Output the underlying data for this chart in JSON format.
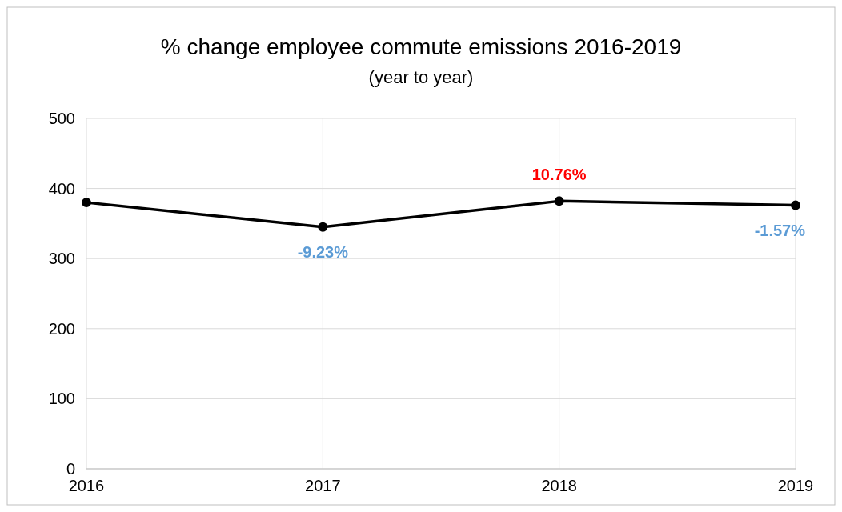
{
  "chart_data": {
    "type": "line",
    "title": "% change employee commute emissions 2016-2019",
    "subtitle": "(year to year)",
    "categories": [
      "2016",
      "2017",
      "2018",
      "2019"
    ],
    "series": [
      {
        "color": "#000000",
        "values": [
          380,
          345,
          382,
          376
        ]
      }
    ],
    "annotations": [
      {
        "text": "-9.23%",
        "x": "2017",
        "y": 345
      },
      {
        "text": "10.76%",
        "x": "2018",
        "y": 382
      },
      {
        "text": "-1.57%",
        "x": "2019",
        "y": 376
      }
    ],
    "ylim": [
      0,
      500
    ],
    "yticks": [
      0,
      100,
      200,
      300,
      400,
      500
    ],
    "grid": true,
    "marker": "circle",
    "line_style": "solid"
  }
}
